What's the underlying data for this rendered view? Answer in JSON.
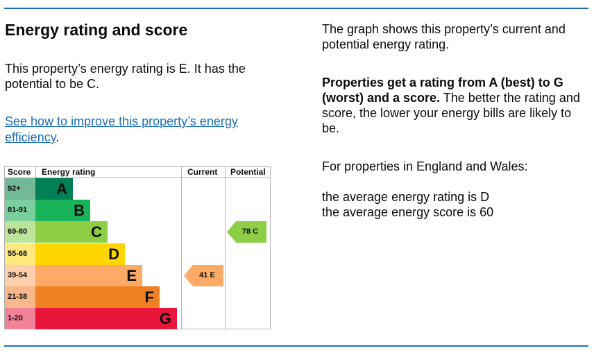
{
  "heading": "Energy rating and score",
  "summary": {
    "before": "This property’s energy rating is ",
    "current_letter": "E",
    "middle": ". It has the potential to be ",
    "potential_letter": "C",
    "after": "."
  },
  "link": {
    "text": "See how to improve this property’s energy efficiency",
    "trailing": "."
  },
  "chart": {
    "headers": {
      "score": "Score",
      "rating": "Energy rating",
      "current": "Current",
      "potential": "Potential"
    },
    "bands": [
      {
        "score": "92+",
        "letter": "A",
        "bar_color": "#008054",
        "score_bg": "#73b999"
      },
      {
        "score": "81-91",
        "letter": "B",
        "bar_color": "#19b459",
        "score_bg": "#7bcf9e"
      },
      {
        "score": "69-80",
        "letter": "C",
        "bar_color": "#8dce46",
        "score_bg": "#bde49a"
      },
      {
        "score": "55-68",
        "letter": "D",
        "bar_color": "#ffd500",
        "score_bg": "#ffe97f"
      },
      {
        "score": "39-54",
        "letter": "E",
        "bar_color": "#fcaa65",
        "score_bg": "#fdd0ab"
      },
      {
        "score": "21-38",
        "letter": "F",
        "bar_color": "#ef8023",
        "score_bg": "#f6b88b"
      },
      {
        "score": "1-20",
        "letter": "G",
        "bar_color": "#e9153b",
        "score_bg": "#f28297"
      }
    ],
    "current": {
      "label": "41 E",
      "band_index": 4,
      "color": "#fcaa65"
    },
    "potential": {
      "label": "78 C",
      "band_index": 2,
      "color": "#8dce46"
    }
  },
  "right": {
    "intro": "The graph shows this property’s current and potential energy rating.",
    "bold": "Properties get a rating from A (best) to G (worst) and a score.",
    "rest": " The better the rating and score, the lower your energy bills are likely to be.",
    "region": "For properties in England and Wales:",
    "avg_rating_line": "the average energy rating is D",
    "avg_score_line": "the average energy score is 60"
  }
}
